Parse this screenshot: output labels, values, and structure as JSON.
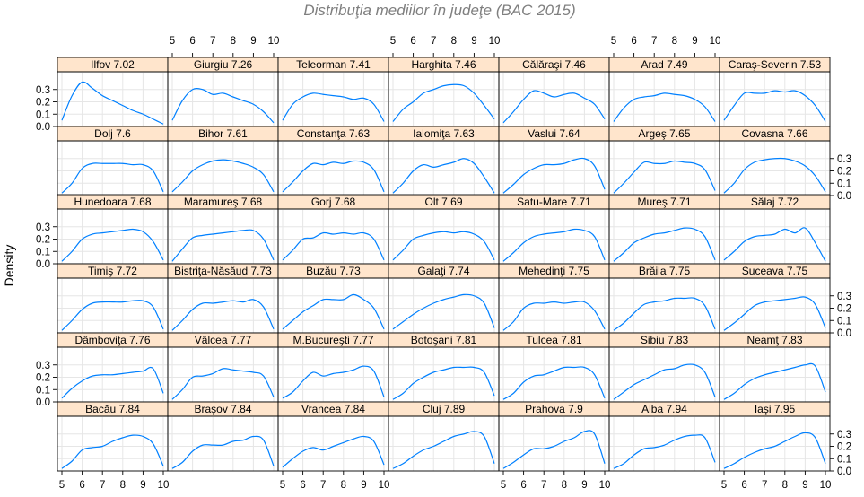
{
  "chart_data": {
    "type": "line",
    "title": "Distribuţia mediilor în judeţe (BAC 2015)",
    "xlabel": "",
    "ylabel": "Density",
    "xlim": [
      5,
      10
    ],
    "ylim": [
      0,
      0.4
    ],
    "x_ticks": [
      5,
      6,
      7,
      8,
      9,
      10
    ],
    "y_ticks": [
      0.0,
      0.1,
      0.2,
      0.3
    ],
    "y_tick_labels": [
      "0.0",
      "0.1",
      "0.2",
      "0.3"
    ],
    "grid": true,
    "line_color": "#0080ff",
    "strip_color": "#ffe5cc",
    "layout": {
      "columns": 7,
      "rows": 6
    },
    "x_grid": [
      5.0,
      5.5,
      6.0,
      6.5,
      7.0,
      7.5,
      8.0,
      8.5,
      9.0,
      9.5,
      10.0
    ],
    "panels": [
      {
        "label": "Ilfov 7.02",
        "y": [
          0.05,
          0.25,
          0.36,
          0.31,
          0.25,
          0.21,
          0.17,
          0.13,
          0.1,
          0.06,
          0.02
        ]
      },
      {
        "label": "Giurgiu 7.26",
        "y": [
          0.05,
          0.21,
          0.3,
          0.3,
          0.26,
          0.27,
          0.24,
          0.21,
          0.18,
          0.12,
          0.03
        ]
      },
      {
        "label": "Teleorman 7.41",
        "y": [
          0.05,
          0.18,
          0.24,
          0.27,
          0.26,
          0.25,
          0.24,
          0.22,
          0.23,
          0.18,
          0.04
        ]
      },
      {
        "label": "Harghita 7.46",
        "y": [
          0.04,
          0.14,
          0.2,
          0.27,
          0.3,
          0.33,
          0.34,
          0.33,
          0.27,
          0.17,
          0.06
        ]
      },
      {
        "label": "Călăraşi 7.46",
        "y": [
          0.03,
          0.12,
          0.22,
          0.29,
          0.27,
          0.24,
          0.26,
          0.27,
          0.23,
          0.18,
          0.06
        ]
      },
      {
        "label": "Arad 7.49",
        "y": [
          0.04,
          0.15,
          0.22,
          0.24,
          0.25,
          0.27,
          0.26,
          0.25,
          0.22,
          0.16,
          0.04
        ]
      },
      {
        "label": "Caraş-Severin 7.53",
        "y": [
          0.05,
          0.17,
          0.27,
          0.27,
          0.27,
          0.29,
          0.28,
          0.29,
          0.25,
          0.17,
          0.04
        ]
      },
      {
        "label": "Dolj 7.6",
        "y": [
          0.02,
          0.1,
          0.22,
          0.26,
          0.26,
          0.26,
          0.26,
          0.25,
          0.25,
          0.2,
          0.03
        ]
      },
      {
        "label": "Bihor 7.61",
        "y": [
          0.03,
          0.11,
          0.2,
          0.25,
          0.28,
          0.29,
          0.28,
          0.26,
          0.23,
          0.17,
          0.03
        ]
      },
      {
        "label": "Constanţa 7.63",
        "y": [
          0.03,
          0.11,
          0.2,
          0.26,
          0.25,
          0.27,
          0.26,
          0.28,
          0.27,
          0.21,
          0.03
        ]
      },
      {
        "label": "Ialomiţa 7.63",
        "y": [
          0.02,
          0.1,
          0.2,
          0.25,
          0.23,
          0.25,
          0.27,
          0.3,
          0.26,
          0.15,
          0.02
        ]
      },
      {
        "label": "Vaslui 7.64",
        "y": [
          0.02,
          0.09,
          0.17,
          0.22,
          0.25,
          0.25,
          0.26,
          0.29,
          0.3,
          0.24,
          0.05
        ]
      },
      {
        "label": "Argeş 7.65",
        "y": [
          0.02,
          0.1,
          0.19,
          0.27,
          0.26,
          0.26,
          0.28,
          0.27,
          0.26,
          0.21,
          0.04
        ]
      },
      {
        "label": "Covasna 7.66",
        "y": [
          0.02,
          0.1,
          0.21,
          0.27,
          0.29,
          0.3,
          0.3,
          0.28,
          0.24,
          0.16,
          0.03
        ]
      },
      {
        "label": "Hunedoara 7.68",
        "y": [
          0.02,
          0.1,
          0.2,
          0.24,
          0.25,
          0.26,
          0.27,
          0.28,
          0.26,
          0.18,
          0.03
        ]
      },
      {
        "label": "Maramureş 7.68",
        "y": [
          0.02,
          0.12,
          0.21,
          0.23,
          0.24,
          0.25,
          0.26,
          0.27,
          0.27,
          0.2,
          0.03
        ]
      },
      {
        "label": "Gorj 7.68",
        "y": [
          0.03,
          0.11,
          0.2,
          0.21,
          0.25,
          0.24,
          0.25,
          0.24,
          0.25,
          0.2,
          0.03
        ]
      },
      {
        "label": "Olt 7.69",
        "y": [
          0.03,
          0.11,
          0.2,
          0.23,
          0.25,
          0.26,
          0.25,
          0.26,
          0.24,
          0.18,
          0.03
        ]
      },
      {
        "label": "Satu-Mare 7.71",
        "y": [
          0.02,
          0.09,
          0.17,
          0.22,
          0.24,
          0.25,
          0.26,
          0.28,
          0.27,
          0.22,
          0.03
        ]
      },
      {
        "label": "Mureş 7.71",
        "y": [
          0.02,
          0.09,
          0.17,
          0.21,
          0.24,
          0.25,
          0.27,
          0.29,
          0.28,
          0.22,
          0.03
        ]
      },
      {
        "label": "Sălaj 7.72",
        "y": [
          0.03,
          0.1,
          0.18,
          0.22,
          0.23,
          0.24,
          0.28,
          0.25,
          0.29,
          0.17,
          0.02
        ]
      },
      {
        "label": "Timiş 7.72",
        "y": [
          0.02,
          0.1,
          0.19,
          0.24,
          0.25,
          0.25,
          0.25,
          0.26,
          0.26,
          0.21,
          0.03
        ]
      },
      {
        "label": "Bistriţa-Năsăud 7.73",
        "y": [
          0.02,
          0.1,
          0.19,
          0.24,
          0.24,
          0.25,
          0.26,
          0.25,
          0.27,
          0.21,
          0.03
        ]
      },
      {
        "label": "Buzău 7.73",
        "y": [
          0.03,
          0.1,
          0.17,
          0.22,
          0.27,
          0.27,
          0.27,
          0.31,
          0.27,
          0.2,
          0.03
        ]
      },
      {
        "label": "Galaţi 7.74",
        "y": [
          0.03,
          0.09,
          0.15,
          0.2,
          0.24,
          0.27,
          0.29,
          0.31,
          0.3,
          0.24,
          0.04
        ]
      },
      {
        "label": "Mehedinţi 7.75",
        "y": [
          0.02,
          0.09,
          0.2,
          0.24,
          0.24,
          0.25,
          0.24,
          0.25,
          0.25,
          0.18,
          0.03
        ]
      },
      {
        "label": "Brăila 7.75",
        "y": [
          0.02,
          0.08,
          0.16,
          0.23,
          0.25,
          0.26,
          0.28,
          0.28,
          0.28,
          0.22,
          0.03
        ]
      },
      {
        "label": "Suceava 7.75",
        "y": [
          0.02,
          0.08,
          0.15,
          0.22,
          0.25,
          0.26,
          0.27,
          0.28,
          0.29,
          0.23,
          0.04
        ]
      },
      {
        "label": "Dâmboviţa 7.76",
        "y": [
          0.03,
          0.11,
          0.17,
          0.21,
          0.22,
          0.22,
          0.23,
          0.24,
          0.25,
          0.27,
          0.07
        ]
      },
      {
        "label": "Vâlcea 7.77",
        "y": [
          0.02,
          0.1,
          0.2,
          0.21,
          0.23,
          0.27,
          0.26,
          0.25,
          0.24,
          0.21,
          0.04
        ]
      },
      {
        "label": "M.Bucureşti 7.77",
        "y": [
          0.03,
          0.08,
          0.17,
          0.24,
          0.21,
          0.23,
          0.24,
          0.26,
          0.29,
          0.25,
          0.04
        ]
      },
      {
        "label": "Botoşani 7.81",
        "y": [
          0.02,
          0.07,
          0.15,
          0.2,
          0.24,
          0.26,
          0.28,
          0.28,
          0.28,
          0.24,
          0.05
        ]
      },
      {
        "label": "Tulcea 7.81",
        "y": [
          0.02,
          0.07,
          0.16,
          0.21,
          0.22,
          0.25,
          0.28,
          0.28,
          0.28,
          0.22,
          0.03
        ]
      },
      {
        "label": "Sibiu 7.83",
        "y": [
          0.02,
          0.08,
          0.14,
          0.18,
          0.22,
          0.26,
          0.27,
          0.3,
          0.3,
          0.24,
          0.04
        ]
      },
      {
        "label": "Neamţ 7.83",
        "y": [
          0.02,
          0.07,
          0.14,
          0.19,
          0.22,
          0.24,
          0.26,
          0.28,
          0.3,
          0.29,
          0.08
        ]
      },
      {
        "label": "Bacău 7.84",
        "y": [
          0.02,
          0.08,
          0.17,
          0.19,
          0.2,
          0.24,
          0.27,
          0.29,
          0.28,
          0.22,
          0.04
        ]
      },
      {
        "label": "Braşov 7.84",
        "y": [
          0.02,
          0.07,
          0.16,
          0.21,
          0.21,
          0.21,
          0.24,
          0.25,
          0.28,
          0.25,
          0.04
        ]
      },
      {
        "label": "Vrancea 7.84",
        "y": [
          0.03,
          0.1,
          0.16,
          0.19,
          0.17,
          0.2,
          0.23,
          0.26,
          0.28,
          0.24,
          0.05
        ]
      },
      {
        "label": "Cluj 7.89",
        "y": [
          0.02,
          0.06,
          0.12,
          0.17,
          0.2,
          0.24,
          0.28,
          0.3,
          0.32,
          0.28,
          0.06
        ]
      },
      {
        "label": "Prahova 7.9",
        "y": [
          0.02,
          0.07,
          0.13,
          0.18,
          0.18,
          0.2,
          0.24,
          0.27,
          0.32,
          0.3,
          0.06
        ]
      },
      {
        "label": "Alba 7.94",
        "y": [
          0.02,
          0.06,
          0.13,
          0.18,
          0.19,
          0.21,
          0.25,
          0.28,
          0.29,
          0.27,
          0.07
        ]
      },
      {
        "label": "Iaşi 7.95",
        "y": [
          0.02,
          0.06,
          0.11,
          0.15,
          0.18,
          0.2,
          0.24,
          0.28,
          0.31,
          0.27,
          0.06
        ]
      }
    ]
  }
}
